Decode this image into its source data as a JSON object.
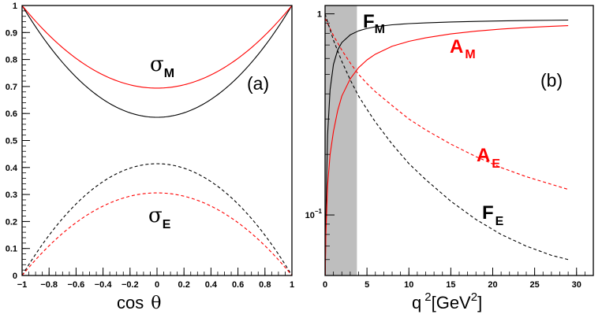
{
  "chart_data": [
    {
      "panel_label": "(a)",
      "type": "line",
      "xlabel": "cos θ",
      "xlabel_parts": {
        "text": "cos",
        "symbol": "θ"
      },
      "ylabel": "",
      "xlim": [
        -1,
        1
      ],
      "ylim": [
        0,
        1
      ],
      "scale": "linear",
      "x_ticks": [
        "−1",
        "−0.8",
        "−0.6",
        "−0.4",
        "−0.2",
        "0",
        "0.2",
        "0.4",
        "0.6",
        "0.8",
        "1"
      ],
      "y_ticks": [
        "0",
        "0.1",
        "0.2",
        "0.3",
        "0.4",
        "0.5",
        "0.6",
        "0.7",
        "0.8",
        "0.9",
        "1"
      ],
      "grid": false,
      "annotations": [
        {
          "symbol": "σ",
          "subscript": "M",
          "color": "#000000"
        },
        {
          "symbol": "σ",
          "subscript": "E",
          "color": "#000000"
        }
      ],
      "series": [
        {
          "color": "#000000",
          "dash": "solid",
          "x": [
            -1,
            -0.8,
            -0.6,
            -0.4,
            -0.2,
            0,
            0.2,
            0.4,
            0.6,
            0.8,
            1
          ],
          "y": [
            1.0,
            0.851,
            0.735,
            0.652,
            0.603,
            0.586,
            0.603,
            0.652,
            0.735,
            0.851,
            1.0
          ]
        },
        {
          "color": "#ff0000",
          "dash": "solid",
          "x": [
            -1,
            -0.8,
            -0.6,
            -0.4,
            -0.2,
            0,
            0.2,
            0.4,
            0.6,
            0.8,
            1
          ],
          "y": [
            1.0,
            0.889,
            0.804,
            0.743,
            0.706,
            0.694,
            0.706,
            0.743,
            0.804,
            0.889,
            1.0
          ]
        },
        {
          "color": "#000000",
          "dash": "dashed",
          "x": [
            -1,
            -0.8,
            -0.6,
            -0.4,
            -0.2,
            0,
            0.2,
            0.4,
            0.6,
            0.8,
            1
          ],
          "y": [
            0.0,
            0.149,
            0.265,
            0.348,
            0.397,
            0.414,
            0.397,
            0.348,
            0.265,
            0.149,
            0.0
          ]
        },
        {
          "color": "#ff0000",
          "dash": "dashed",
          "x": [
            -1,
            -0.8,
            -0.6,
            -0.4,
            -0.2,
            0,
            0.2,
            0.4,
            0.6,
            0.8,
            1
          ],
          "y": [
            0.0,
            0.111,
            0.196,
            0.257,
            0.294,
            0.306,
            0.294,
            0.257,
            0.196,
            0.111,
            0.0
          ]
        }
      ]
    },
    {
      "panel_label": "(b)",
      "type": "line",
      "xlabel": "q 2[GeV2]",
      "xlabel_parts": {
        "q": "q",
        "exp1": "2",
        "unit_open": "[GeV",
        "exp2": "2",
        "unit_close": "]"
      },
      "ylabel": "",
      "xlim": [
        0,
        32
      ],
      "ylim": [
        0.05,
        1.1
      ],
      "scale": "log-y",
      "x_ticks": [
        "0",
        "5",
        "10",
        "15",
        "20",
        "25",
        "30"
      ],
      "y_ticks": [
        "1",
        "10−1"
      ],
      "y_tick_parts": [
        {
          "base": "1",
          "exp": ""
        },
        {
          "base": "10",
          "exp": "−1"
        }
      ],
      "shaded_region_x": [
        0,
        3.8
      ],
      "shaded_color": "#bebebe",
      "grid": false,
      "annotations": [
        {
          "text": "F",
          "subscript": "M",
          "color": "#000000"
        },
        {
          "text": "A",
          "subscript": "M",
          "color": "#ff0000"
        },
        {
          "text": "A",
          "subscript": "E",
          "color": "#ff0000"
        },
        {
          "text": "F",
          "subscript": "E",
          "color": "#000000"
        }
      ],
      "series": [
        {
          "label": "F_M",
          "color": "#000000",
          "dash": "solid",
          "x": [
            0.02,
            0.1,
            0.3,
            0.6,
            1,
            1.5,
            2,
            3,
            4,
            5,
            6,
            8,
            10,
            12,
            15,
            18,
            21,
            24,
            27,
            29
          ],
          "y": [
            0.05,
            0.1,
            0.25,
            0.42,
            0.56,
            0.66,
            0.72,
            0.786,
            0.823,
            0.846,
            0.862,
            0.882,
            0.894,
            0.902,
            0.911,
            0.917,
            0.922,
            0.926,
            0.929,
            0.931
          ]
        },
        {
          "label": "A_M",
          "color": "#ff0000",
          "dash": "solid",
          "x": [
            0.02,
            0.1,
            0.3,
            0.6,
            1,
            1.5,
            2,
            3,
            4,
            5,
            6,
            8,
            10,
            12,
            15,
            18,
            21,
            24,
            27,
            29
          ],
          "y": [
            0.05,
            0.08,
            0.14,
            0.2,
            0.26,
            0.33,
            0.39,
            0.475,
            0.54,
            0.59,
            0.63,
            0.69,
            0.73,
            0.76,
            0.795,
            0.82,
            0.84,
            0.855,
            0.867,
            0.874
          ]
        },
        {
          "label": "A_E",
          "color": "#ff0000",
          "dash": "dashed",
          "x": [
            0,
            1,
            2,
            3,
            4,
            5,
            6,
            8,
            10,
            12,
            15,
            18,
            21,
            24,
            27,
            29
          ],
          "y": [
            0.95,
            0.78,
            0.66,
            0.57,
            0.5,
            0.45,
            0.41,
            0.35,
            0.3,
            0.265,
            0.225,
            0.195,
            0.172,
            0.155,
            0.142,
            0.134
          ]
        },
        {
          "label": "F_E",
          "color": "#000000",
          "dash": "dashed",
          "x": [
            0,
            1,
            2,
            3,
            4,
            5,
            6,
            8,
            10,
            12,
            15,
            18,
            21,
            24,
            27,
            29
          ],
          "y": [
            1.0,
            0.74,
            0.58,
            0.47,
            0.39,
            0.335,
            0.29,
            0.225,
            0.18,
            0.15,
            0.117,
            0.095,
            0.08,
            0.07,
            0.063,
            0.06
          ]
        }
      ]
    }
  ]
}
